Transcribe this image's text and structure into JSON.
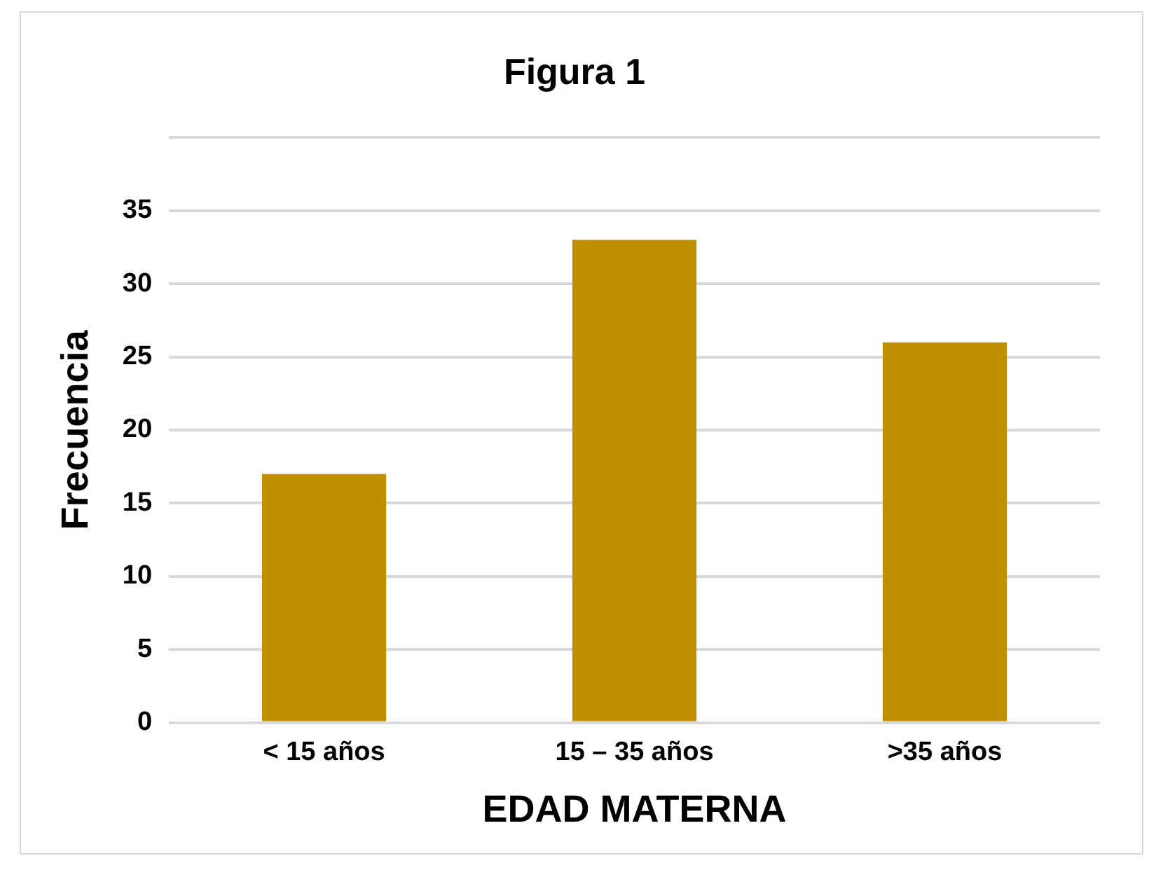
{
  "chart_data": {
    "type": "bar",
    "title": "Figura 1",
    "xlabel": "EDAD MATERNA",
    "ylabel": "Frecuencia",
    "categories": [
      "< 15 años",
      "15 – 35 años",
      ">35 años"
    ],
    "values": [
      17,
      33,
      26
    ],
    "color": "#bf8f00",
    "ylim": [
      0,
      40
    ],
    "yticks": [
      0,
      5,
      10,
      15,
      20,
      25,
      30,
      35,
      {
        "value": 40,
        "label": null
      }
    ],
    "grid": "y",
    "legend": false
  }
}
